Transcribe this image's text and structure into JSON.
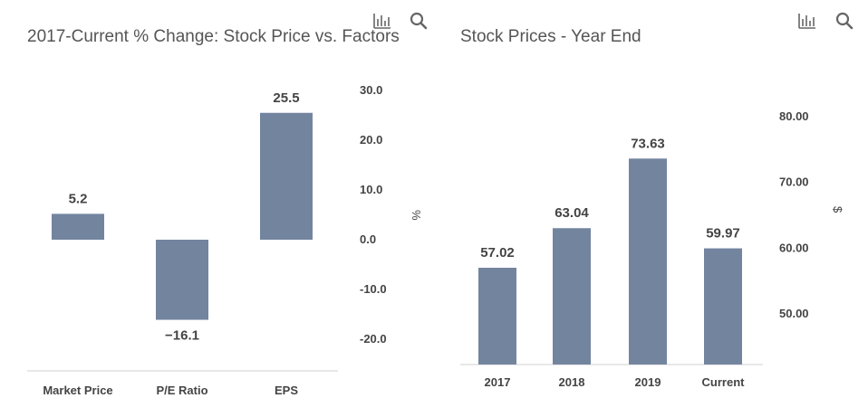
{
  "colors": {
    "bar": "#73849f",
    "axis": "#d0d0d0",
    "title": "#555555",
    "label": "#444444",
    "icon": "#666666"
  },
  "toolbar": {
    "chart_type_icon": "bar-chart-icon",
    "zoom_icon": "magnifier-icon"
  },
  "chart_data": [
    {
      "type": "bar",
      "title": "2017-Current % Change: Stock Price vs. Factors",
      "categories": [
        "Market Price",
        "P/E Ratio",
        "EPS"
      ],
      "values": [
        5.2,
        -16.1,
        25.5
      ],
      "value_labels": [
        "5.2",
        "−16.1",
        "25.5"
      ],
      "ylabel": "%",
      "y_axis_position": "right",
      "ylim": [
        -20,
        30
      ],
      "yticks": [
        30,
        20,
        10,
        0,
        -10,
        -20
      ],
      "ytick_labels": [
        "30.0",
        "20.0",
        "10.0",
        "0.0",
        "-10.0",
        "-20.0"
      ],
      "grid": false,
      "legend": "none"
    },
    {
      "type": "bar",
      "title": "Stock Prices - Year End",
      "categories": [
        "2017",
        "2018",
        "2019",
        "Current"
      ],
      "values": [
        57.02,
        63.04,
        73.63,
        59.97
      ],
      "value_labels": [
        "57.02",
        "63.04",
        "73.63",
        "59.97"
      ],
      "ylabel": "$",
      "y_axis_position": "right",
      "ylim": [
        42.3,
        82.2
      ],
      "yticks": [
        80,
        70,
        60,
        50
      ],
      "ytick_labels": [
        "80.00",
        "70.00",
        "60.00",
        "50.00"
      ],
      "grid": false,
      "legend": "none"
    }
  ]
}
